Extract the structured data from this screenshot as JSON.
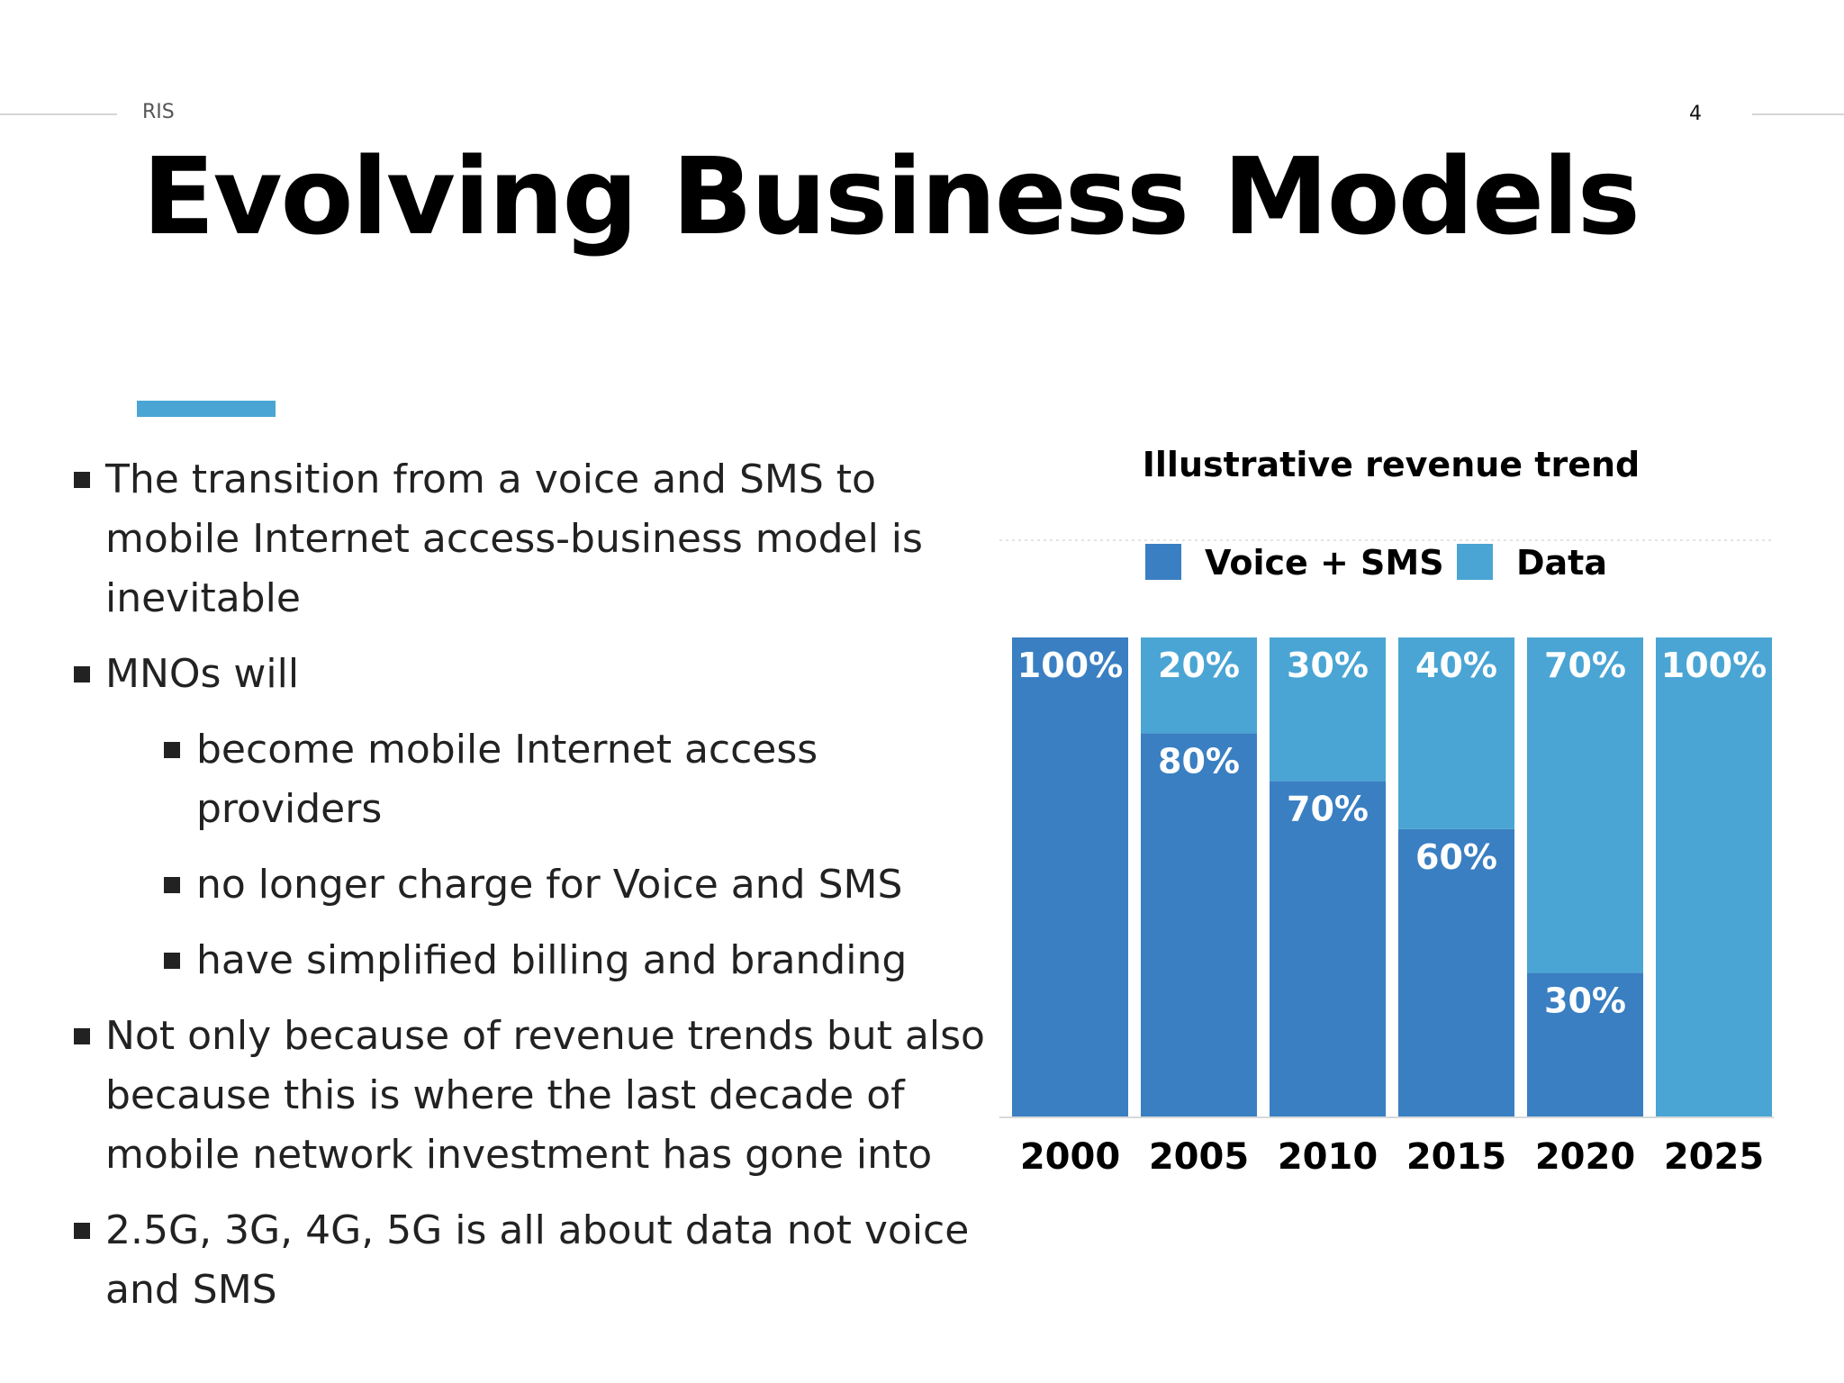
{
  "header": {
    "label": "RIS",
    "page_number": "4"
  },
  "title": "Evolving Business Models",
  "bullets": {
    "b1": "The transition from a voice and SMS to mobile Internet access-business model is inevitable",
    "b2": "MNOs will",
    "b2a": "become mobile Internet access providers",
    "b2b": "no longer charge for Voice and SMS",
    "b2c": "have simplified billing and branding",
    "b3": "Not only because of revenue trends but also because this is where the last decade of mobile network investment has gone into",
    "b4": "2.5G, 3G, 4G, 5G is all about data not voice and SMS"
  },
  "colors": {
    "voice_sms": "#3a7fc2",
    "data": "#4aa5d4",
    "accent": "#4aa5d4"
  },
  "chart_data": {
    "type": "bar",
    "stacked": true,
    "title": "Illustrative revenue trend",
    "legend_position": "top",
    "categories": [
      "2000",
      "2005",
      "2010",
      "2015",
      "2020",
      "2025"
    ],
    "series": [
      {
        "name": "Voice + SMS",
        "values": [
          100,
          80,
          70,
          60,
          30,
          0
        ],
        "labels": [
          "100%",
          "80%",
          "70%",
          "60%",
          "30%",
          ""
        ]
      },
      {
        "name": "Data",
        "values": [
          0,
          20,
          30,
          40,
          70,
          100
        ],
        "labels": [
          "",
          "20%",
          "30%",
          "40%",
          "70%",
          "100%"
        ]
      }
    ],
    "ylim": [
      0,
      100
    ],
    "unit": "%"
  }
}
